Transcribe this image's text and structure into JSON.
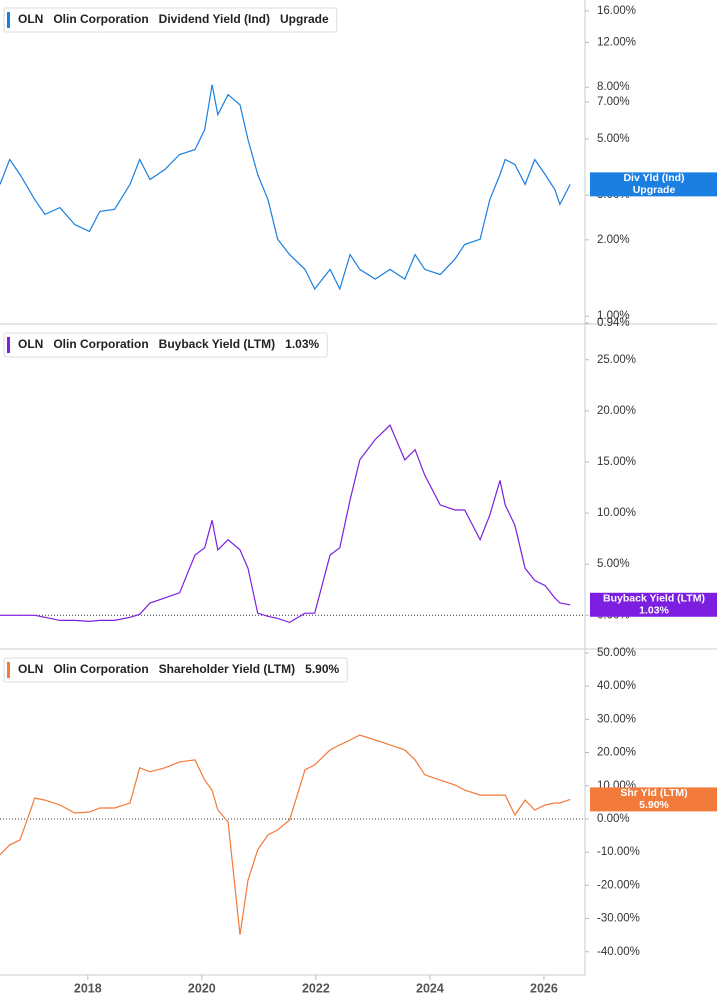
{
  "chart_data": [
    {
      "type": "line",
      "ticker": "OLN",
      "company": "Olin Corporation",
      "status": "Upgrade",
      "callout": [
        "Div Yld (Ind)",
        "Upgrade"
      ],
      "log": true,
      "zero_line": false,
      "x": [
        2016.46,
        2016.63,
        2016.81,
        2017.07,
        2017.25,
        2017.51,
        2017.77,
        2018.03,
        2018.21,
        2018.47,
        2018.74,
        2018.91,
        2019.09,
        2019.35,
        2019.61,
        2019.88,
        2020.05,
        2020.18,
        2020.28,
        2020.46,
        2020.67,
        2020.81,
        2020.98,
        2021.16,
        2021.33,
        2021.54,
        2021.81,
        2021.98,
        2022.25,
        2022.42,
        2022.6,
        2022.77,
        2023.04,
        2023.3,
        2023.56,
        2023.74,
        2023.91,
        2024.18,
        2024.44,
        2024.61,
        2024.88,
        2025.05,
        2025.23,
        2025.32,
        2025.49,
        2025.67,
        2025.84,
        2026.02,
        2026.19,
        2026.28,
        2026.46
      ],
      "xlim": [
        2016.46,
        2026.72
      ],
      "series": [
        {
          "name": "Dividend Yield (Ind)",
          "color": "#1a7fe0",
          "values": [
            3.31,
            4.15,
            3.62,
            2.88,
            2.52,
            2.68,
            2.3,
            2.16,
            2.59,
            2.64,
            3.31,
            4.15,
            3.46,
            3.79,
            4.34,
            4.54,
            5.44,
            8.18,
            6.23,
            7.47,
            6.82,
            4.97,
            3.62,
            2.88,
            2.01,
            1.75,
            1.53,
            1.28,
            1.53,
            1.28,
            1.75,
            1.53,
            1.4,
            1.53,
            1.4,
            1.75,
            1.53,
            1.46,
            1.68,
            1.92,
            2.01,
            2.88,
            3.62,
            4.15,
            3.96,
            3.31,
            4.15,
            3.62,
            3.16,
            2.76,
            3.31
          ]
        }
      ],
      "ylim": [
        0.94,
        17.66
      ],
      "yticks": [
        {
          "value": 0.94,
          "label": "0.94%"
        },
        {
          "value": 1,
          "label": "1.00%"
        },
        {
          "value": 2,
          "label": "2.00%"
        },
        {
          "value": 3,
          "label": "3.00%"
        },
        {
          "value": 5,
          "label": "5.00%"
        },
        {
          "value": 7,
          "label": "7.00%"
        },
        {
          "value": 8,
          "label": "8.00%"
        },
        {
          "value": 12,
          "label": "12.00%"
        },
        {
          "value": 16,
          "label": "16.00%"
        }
      ]
    },
    {
      "type": "line",
      "ticker": "OLN",
      "company": "Olin Corporation",
      "status": "1.03%",
      "callout": [
        "Buyback Yield (LTM)",
        "1.03%"
      ],
      "log": false,
      "zero_line": true,
      "x": [
        2016.46,
        2016.63,
        2016.81,
        2017.07,
        2017.25,
        2017.51,
        2017.77,
        2018.03,
        2018.21,
        2018.47,
        2018.74,
        2018.91,
        2019.09,
        2019.35,
        2019.61,
        2019.88,
        2020.05,
        2020.18,
        2020.28,
        2020.46,
        2020.67,
        2020.81,
        2020.98,
        2021.16,
        2021.33,
        2021.54,
        2021.81,
        2021.98,
        2022.25,
        2022.42,
        2022.6,
        2022.77,
        2023.04,
        2023.3,
        2023.56,
        2023.74,
        2023.91,
        2024.18,
        2024.44,
        2024.61,
        2024.88,
        2025.05,
        2025.23,
        2025.32,
        2025.49,
        2025.67,
        2025.84,
        2026.02,
        2026.19,
        2026.28,
        2026.46
      ],
      "xlim": [
        2016.46,
        2026.72
      ],
      "series": [
        {
          "name": "Buyback Yield (LTM)",
          "color": "#7d1fe0",
          "values": [
            0,
            0,
            0,
            0,
            -0.2,
            -0.5,
            -0.5,
            -0.6,
            -0.5,
            -0.5,
            -0.2,
            0.1,
            1.2,
            1.7,
            2.2,
            5.9,
            6.6,
            9.3,
            6.4,
            7.4,
            6.4,
            4.6,
            0.2,
            -0.1,
            -0.3,
            -0.7,
            0.2,
            0.2,
            5.9,
            6.6,
            11.3,
            15.2,
            17.2,
            18.6,
            15.2,
            16.2,
            13.7,
            10.8,
            10.3,
            10.3,
            7.4,
            9.8,
            13.2,
            10.8,
            8.8,
            4.6,
            3.4,
            2.9,
            1.7,
            1.2,
            1.03
          ]
        }
      ],
      "ylim": [
        -3.2,
        28.4
      ],
      "yticks": [
        {
          "value": 0,
          "label": "0.00%"
        },
        {
          "value": 5,
          "label": "5.00%"
        },
        {
          "value": 10,
          "label": "10.00%"
        },
        {
          "value": 15,
          "label": "15.00%"
        },
        {
          "value": 20,
          "label": "20.00%"
        },
        {
          "value": 25,
          "label": "25.00%"
        }
      ]
    },
    {
      "type": "line",
      "ticker": "OLN",
      "company": "Olin Corporation",
      "status": "5.90%",
      "callout": [
        "Shr Yld (LTM)",
        "5.90%"
      ],
      "log": false,
      "zero_line": true,
      "x": [
        2016.46,
        2016.63,
        2016.81,
        2017.07,
        2017.25,
        2017.51,
        2017.77,
        2018.03,
        2018.21,
        2018.47,
        2018.74,
        2018.91,
        2019.09,
        2019.35,
        2019.61,
        2019.88,
        2020.05,
        2020.18,
        2020.28,
        2020.46,
        2020.67,
        2020.81,
        2020.98,
        2021.16,
        2021.33,
        2021.54,
        2021.81,
        2021.98,
        2022.25,
        2022.42,
        2022.6,
        2022.77,
        2023.04,
        2023.3,
        2023.56,
        2023.74,
        2023.91,
        2024.18,
        2024.44,
        2024.61,
        2024.88,
        2025.05,
        2025.23,
        2025.32,
        2025.49,
        2025.67,
        2025.84,
        2026.02,
        2026.19,
        2026.28,
        2026.46
      ],
      "xlim": [
        2016.46,
        2026.72
      ],
      "xticks": [
        2018,
        2020,
        2022,
        2024,
        2026
      ],
      "series": [
        {
          "name": "Shareholder Yield (LTM)",
          "color": "#f27a3a",
          "values": [
            -10.8,
            -7.8,
            -6.3,
            6.3,
            5.7,
            4.2,
            1.8,
            2.1,
            3.3,
            3.3,
            4.8,
            15.4,
            14.2,
            15.4,
            17.2,
            17.8,
            11.7,
            8.7,
            2.7,
            -0.9,
            -34.9,
            -18.4,
            -9.3,
            -4.8,
            -3.3,
            -0.3,
            14.8,
            16.3,
            20.8,
            22.3,
            23.8,
            25.3,
            23.8,
            22.3,
            20.8,
            17.8,
            13.3,
            11.7,
            10.2,
            8.7,
            7.2,
            7.2,
            7.2,
            7.2,
            1.2,
            5.7,
            2.7,
            4.2,
            4.8,
            4.8,
            5.9
          ]
        }
      ],
      "ylim": [
        -47,
        50.9
      ],
      "yticks": [
        {
          "value": -40,
          "label": "-40.00%"
        },
        {
          "value": -30,
          "label": "-30.00%"
        },
        {
          "value": -20,
          "label": "-20.00%"
        },
        {
          "value": -10,
          "label": "-10.00%"
        },
        {
          "value": 0,
          "label": "0.00%"
        },
        {
          "value": 10,
          "label": "10.00%"
        },
        {
          "value": 20,
          "label": "20.00%"
        },
        {
          "value": 30,
          "label": "30.00%"
        },
        {
          "value": 40,
          "label": "40.00%"
        },
        {
          "value": 50,
          "label": "50.00%"
        }
      ]
    }
  ]
}
